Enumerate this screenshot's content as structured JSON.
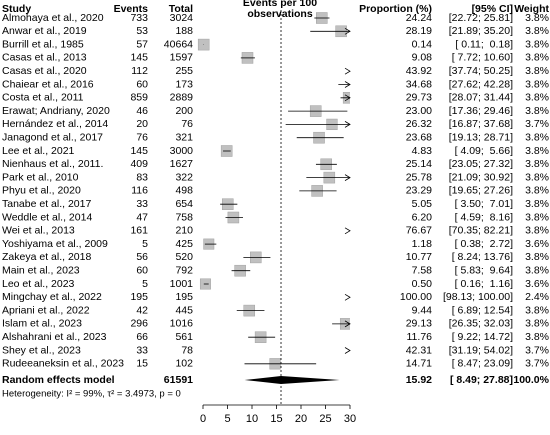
{
  "chart_data": {
    "type": "forest",
    "headers": {
      "study": "Study",
      "events": "Events",
      "total": "Total",
      "axis": [
        "Events per 100",
        "observations"
      ],
      "proportion": "Proportion (%)",
      "ci": "[95% CI]",
      "weight": "Weight"
    },
    "studies": [
      "Almohaya et al., 2020",
      "Anwar et al., 2019",
      "Burrill et al., 1985",
      "Casas et al., 2013",
      "Casas et al., 2020",
      "Chaiear et al., 2016",
      "Costa et al., 2011",
      "Erawat; Andriany, 2020",
      "Hernández et al., 2014",
      "Janagond et al., 2017",
      "Lee et al., 2021",
      "Nienhaus et al., 2011.",
      "Park et al., 2010",
      "Phyu et al., 2020",
      "Tanabe et al., 2017",
      "Weddle et al., 2014",
      "Wei et al., 2013",
      "Yoshiyama et al., 2009",
      "Zakeya et al., 2018",
      "Main et al., 2023",
      "Leo et al., 2023",
      "Mingchay et al., 2022",
      "Apriani et al., 2022",
      "Islam et al., 2023",
      "Alshahrani et al., 2023",
      "Shey et al., 2023",
      "Rudeeaneksin et al., 2023"
    ],
    "events": [
      733,
      53,
      57,
      145,
      112,
      60,
      859,
      46,
      20,
      76,
      145,
      409,
      83,
      116,
      33,
      47,
      161,
      5,
      56,
      60,
      5,
      195,
      42,
      296,
      66,
      33,
      15
    ],
    "totals": [
      3024,
      188,
      40664,
      1597,
      255,
      173,
      2889,
      200,
      76,
      321,
      3000,
      1627,
      322,
      498,
      654,
      758,
      210,
      425,
      520,
      792,
      1001,
      195,
      445,
      1016,
      561,
      78,
      102
    ],
    "values": [
      24.24,
      28.19,
      0.14,
      9.08,
      43.92,
      34.68,
      29.73,
      23.0,
      26.32,
      23.68,
      4.83,
      25.14,
      25.78,
      23.29,
      5.05,
      6.2,
      76.67,
      1.18,
      10.77,
      7.58,
      0.5,
      100.0,
      9.44,
      29.13,
      11.76,
      42.31,
      14.71
    ],
    "value_labels": [
      "24.24",
      "28.19",
      "0.14",
      "9.08",
      "43.92",
      "34.68",
      "29.73",
      "23.00",
      "26.32",
      "23.68",
      "4.83",
      "25.14",
      "25.78",
      "23.29",
      "5.05",
      "6.20",
      "76.67",
      "1.18",
      "10.77",
      "7.58",
      "0.50",
      "100.00",
      "9.44",
      "29.13",
      "11.76",
      "42.31",
      "14.71"
    ],
    "ci_low": [
      22.72,
      21.89,
      0.11,
      7.72,
      37.74,
      27.62,
      28.07,
      17.36,
      16.87,
      19.13,
      4.09,
      23.05,
      21.09,
      19.65,
      3.5,
      4.59,
      70.35,
      0.38,
      8.24,
      5.83,
      0.16,
      98.13,
      6.89,
      26.35,
      9.22,
      31.19,
      8.47
    ],
    "ci_high": [
      25.81,
      35.2,
      0.18,
      10.6,
      50.25,
      42.28,
      31.44,
      29.46,
      37.68,
      28.71,
      5.66,
      27.32,
      30.92,
      27.26,
      7.01,
      8.16,
      82.21,
      2.72,
      13.76,
      9.64,
      1.16,
      100.0,
      12.54,
      32.03,
      14.72,
      54.02,
      23.09
    ],
    "ci_labels": [
      "[22.72; 25.81]",
      "[21.89; 35.20]",
      "[ 0.11;  0.18]",
      "[ 7.72; 10.60]",
      "[37.74; 50.25]",
      "[27.62; 42.28]",
      "[28.07; 31.44]",
      "[17.36; 29.46]",
      "[16.87; 37.68]",
      "[19.13; 28.71]",
      "[ 4.09;  5.66]",
      "[23.05; 27.32]",
      "[21.09; 30.92]",
      "[19.65; 27.26]",
      "[ 3.50;  7.01]",
      "[ 4.59;  8.16]",
      "[70.35; 82.21]",
      "[ 0.38;  2.72]",
      "[ 8.24; 13.76]",
      "[ 5.83;  9.64]",
      "[ 0.16;  1.16]",
      "[98.13; 100.00]",
      "[ 6.89; 12.54]",
      "[26.35; 32.03]",
      "[ 9.22; 14.72]",
      "[31.19; 54.02]",
      "[ 8.47; 23.09]"
    ],
    "weights": [
      3.8,
      3.8,
      3.8,
      3.8,
      3.8,
      3.8,
      3.8,
      3.8,
      3.7,
      3.8,
      3.8,
      3.8,
      3.8,
      3.8,
      3.8,
      3.8,
      3.8,
      3.6,
      3.8,
      3.8,
      3.6,
      2.4,
      3.8,
      3.8,
      3.8,
      3.7,
      3.7
    ],
    "weight_labels": [
      "3.8%",
      "3.8%",
      "3.8%",
      "3.8%",
      "3.8%",
      "3.8%",
      "3.8%",
      "3.8%",
      "3.7%",
      "3.8%",
      "3.8%",
      "3.8%",
      "3.8%",
      "3.8%",
      "3.8%",
      "3.8%",
      "3.8%",
      "3.6%",
      "3.8%",
      "3.8%",
      "3.6%",
      "2.4%",
      "3.8%",
      "3.8%",
      "3.8%",
      "3.7%",
      "3.7%"
    ],
    "summary": {
      "name": "Random effects model",
      "total": 61591,
      "value": 15.92,
      "value_label": "15.92",
      "ci_low": 8.49,
      "ci_high": 27.88,
      "ci_label": "[ 8.49; 27.88]",
      "weight": 100.0,
      "weight_label": "100.0%"
    },
    "heterogeneity": "Heterogeneity: I² = 99%, τ² = 3.4973, p = 0",
    "xlim": [
      0,
      30
    ],
    "xticks": [
      0,
      5,
      10,
      15,
      20,
      25,
      30
    ],
    "color": "#c0c0c0"
  }
}
